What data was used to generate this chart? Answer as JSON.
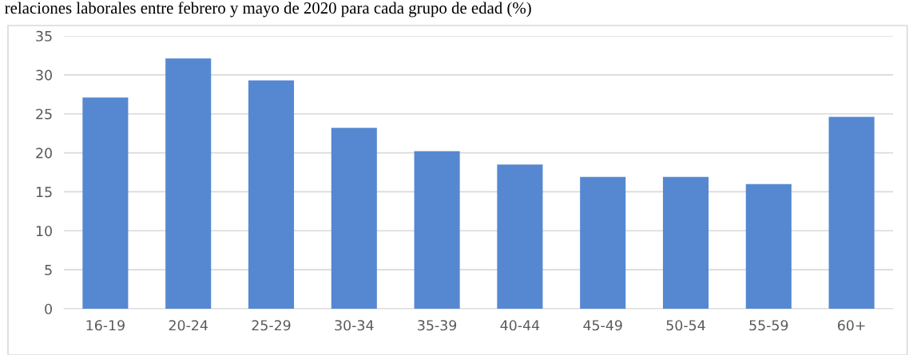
{
  "chart_data": {
    "type": "bar",
    "title": "relaciones laborales entre febrero y mayo de 2020 para cada grupo de edad (%)",
    "categories": [
      "16-19",
      "20-24",
      "25-29",
      "30-34",
      "35-39",
      "40-44",
      "45-49",
      "50-54",
      "55-59",
      "60+"
    ],
    "values": [
      27.1,
      32.1,
      29.3,
      23.2,
      20.2,
      18.5,
      16.9,
      16.9,
      16.0,
      24.6
    ],
    "color": "#5588d0",
    "ylim": [
      0,
      35
    ],
    "yticks": [
      0,
      5,
      10,
      15,
      20,
      25,
      30,
      35
    ],
    "grid": "y"
  }
}
